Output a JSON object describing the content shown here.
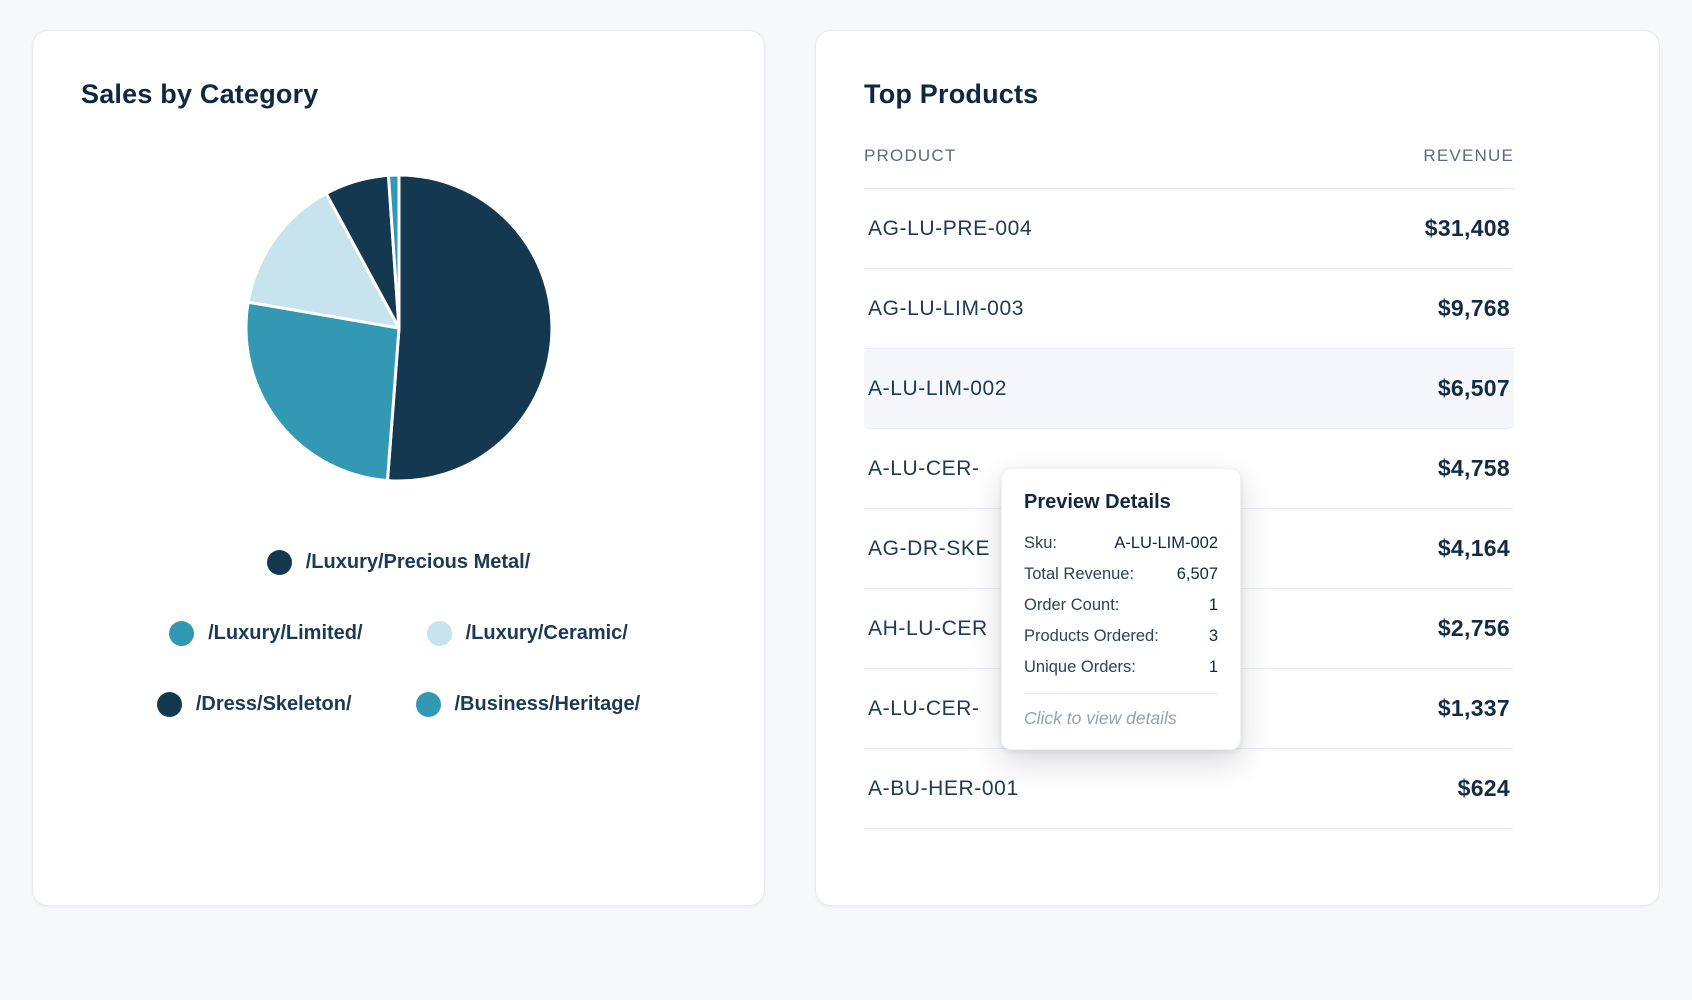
{
  "left_card": {
    "title": "Sales by Category",
    "legend": [
      {
        "label": "/Luxury/Precious Metal/",
        "color": "#14384f"
      },
      {
        "label": "/Luxury/Limited/",
        "color": "#3398b4"
      },
      {
        "label": "/Luxury/Ceramic/",
        "color": "#c7e3ee"
      },
      {
        "label": "/Dress/Skeleton/",
        "color": "#14384f"
      },
      {
        "label": "/Business/Heritage/",
        "color": "#3398b4"
      }
    ]
  },
  "chart_data": {
    "type": "pie",
    "title": "Sales by Category",
    "labels": [
      "/Luxury/Precious Metal/",
      "/Luxury/Limited/",
      "/Luxury/Ceramic/",
      "/Dress/Skeleton/",
      "/Business/Heritage/"
    ],
    "values": [
      51.2,
      26.5,
      14.4,
      6.8,
      1.1
    ],
    "colors": [
      "#14384f",
      "#3398b4",
      "#c7e3ee",
      "#14384f",
      "#3398b4"
    ],
    "start_angle_deg": -90,
    "direction": "clockwise",
    "legend_position": "bottom",
    "slice_separator_color": "#ffffff"
  },
  "right_card": {
    "title": "Top Products",
    "columns": {
      "product": "PRODUCT",
      "revenue": "REVENUE"
    },
    "rows": [
      {
        "product": "AG-LU-PRE-004",
        "revenue": "$31,408"
      },
      {
        "product": "AG-LU-LIM-003",
        "revenue": "$9,768"
      },
      {
        "product": "A-LU-LIM-002",
        "revenue": "$6,507"
      },
      {
        "product": "A-LU-CER-",
        "revenue": "$4,758"
      },
      {
        "product": "AG-DR-SKE",
        "revenue": "$4,164"
      },
      {
        "product": "AH-LU-CER",
        "revenue": "$2,756"
      },
      {
        "product": "A-LU-CER-",
        "revenue": "$1,337"
      },
      {
        "product": "A-BU-HER-001",
        "revenue": "$624"
      }
    ]
  },
  "tooltip": {
    "title": "Preview Details",
    "fields": [
      {
        "label": "Sku:",
        "value": "A-LU-LIM-002"
      },
      {
        "label": "Total Revenue:",
        "value": "6,507"
      },
      {
        "label": "Order Count:",
        "value": "1"
      },
      {
        "label": "Products Ordered:",
        "value": "3"
      },
      {
        "label": "Unique Orders:",
        "value": "1"
      }
    ],
    "footer": "Click to view details"
  }
}
